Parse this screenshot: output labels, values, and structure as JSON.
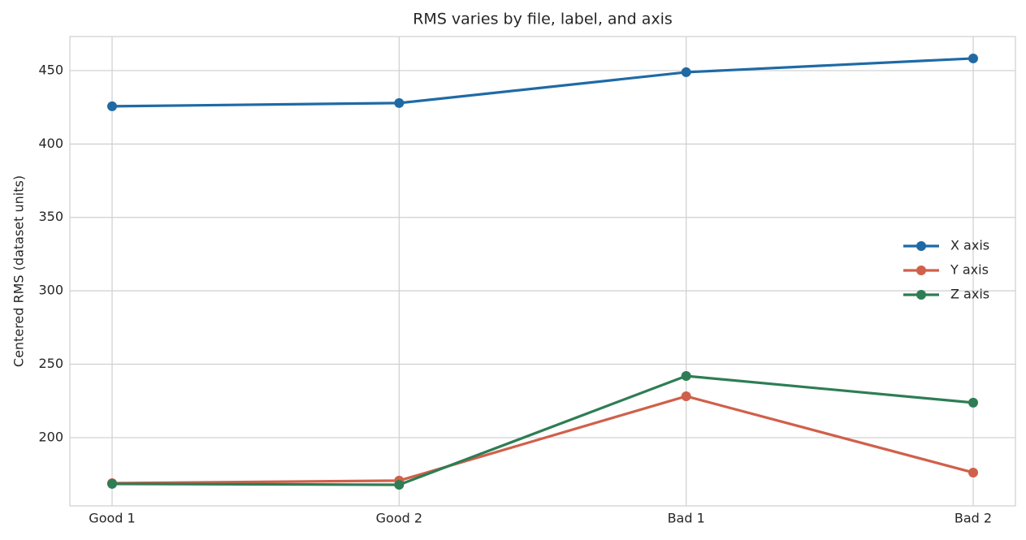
{
  "chart_data": {
    "type": "line",
    "title": "RMS varies by file, label, and axis",
    "ylabel": "Centered RMS (dataset units)",
    "categories": [
      "Good 1",
      "Good 2",
      "Bad 1",
      "Bad 2"
    ],
    "series": [
      {
        "name": "X axis",
        "color": "#1f6aa5",
        "values": [
          425.7,
          427.9,
          448.9,
          458.3
        ]
      },
      {
        "name": "Y axis",
        "color": "#d0604a",
        "values": [
          169.0,
          170.7,
          228.2,
          176.2
        ]
      },
      {
        "name": "Z axis",
        "color": "#2e7d55",
        "values": [
          168.5,
          167.9,
          242.0,
          223.8
        ]
      }
    ],
    "ylim": [
      153.5,
      473.2
    ],
    "yticks": [
      200,
      250,
      300,
      350,
      400,
      450
    ],
    "grid": true,
    "legend": "center right"
  }
}
